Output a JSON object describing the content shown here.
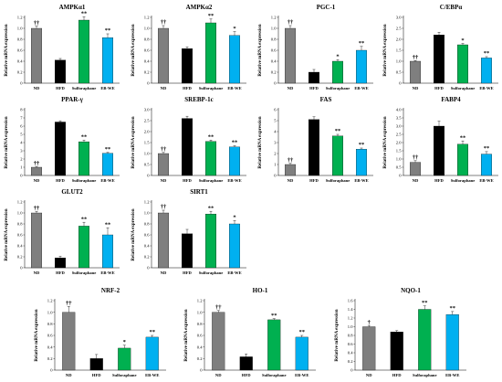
{
  "figure": {
    "colors": {
      "ND": "#7f7f7f",
      "HFD": "#000000",
      "Sulforaphane": "#00b050",
      "EB-WE": "#00b0f0"
    },
    "ylabel": "Relative mRNA expression"
  },
  "chart_data": [
    {
      "type": "bar",
      "title": "AMPKα1",
      "ylabel": "Relative mRNA expression",
      "categories": [
        "ND",
        "HFD",
        "Sulforaphane",
        "EB-WE"
      ],
      "values": [
        1.0,
        0.42,
        1.15,
        0.83
      ],
      "errors": [
        0.04,
        0.03,
        0.06,
        0.07
      ],
      "significance": [
        "††",
        "",
        "**",
        "**"
      ],
      "ylim": [
        0,
        1.2
      ],
      "yticks": [
        "0",
        "0.2",
        "0.4",
        "0.6",
        "0.8",
        "1.0",
        "1.2"
      ]
    },
    {
      "type": "bar",
      "title": "AMPKα2",
      "ylabel": "Relative mRNA expression",
      "categories": [
        "ND",
        "HFD",
        "Sulforaphane",
        "EB-WE"
      ],
      "values": [
        1.0,
        0.63,
        1.1,
        0.87
      ],
      "errors": [
        0.05,
        0.03,
        0.07,
        0.07
      ],
      "significance": [
        "††",
        "",
        "**",
        "*"
      ],
      "ylim": [
        0,
        1.2
      ],
      "yticks": [
        "0",
        "0.2",
        "0.4",
        "0.6",
        "0.8",
        "1.0",
        "1.2"
      ]
    },
    {
      "type": "bar",
      "title": "PGC-1",
      "ylabel": "Relative mRNA expression",
      "categories": [
        "ND",
        "HFD",
        "Sulforaphane",
        "EB-WE"
      ],
      "values": [
        1.0,
        0.2,
        0.4,
        0.6
      ],
      "errors": [
        0.05,
        0.05,
        0.03,
        0.07
      ],
      "significance": [
        "††",
        "",
        "*",
        "**"
      ],
      "ylim": [
        0,
        1.2
      ],
      "yticks": [
        "0",
        "0.2",
        "0.4",
        "0.6",
        "0.8",
        "1.0",
        "1.2"
      ]
    },
    {
      "type": "bar",
      "title": "C/EBPα",
      "ylabel": "Relative mRNA expression",
      "categories": [
        "ND",
        "HFD",
        "Sulforaphane",
        "EB-WE"
      ],
      "values": [
        1.0,
        2.2,
        1.75,
        1.15
      ],
      "errors": [
        0.03,
        0.12,
        0.06,
        0.06
      ],
      "significance": [
        "††",
        "",
        "*",
        "**"
      ],
      "ylim": [
        0,
        3.0
      ],
      "yticks": [
        "0",
        "0.5",
        "1.0",
        "1.5",
        "2.0",
        "2.5",
        "3.0"
      ]
    },
    {
      "type": "bar",
      "title": "PPAR-γ",
      "ylabel": "Relative mRNA expression",
      "categories": [
        "ND",
        "HFD",
        "Sulforaphane",
        "EB-WE"
      ],
      "values": [
        1.0,
        6.5,
        4.1,
        2.7
      ],
      "errors": [
        0.1,
        0.15,
        0.2,
        0.1
      ],
      "significance": [
        "††",
        "",
        "**",
        "**"
      ],
      "ylim": [
        0,
        8
      ],
      "yticks": [
        "0",
        "1",
        "2",
        "3",
        "4",
        "5",
        "6",
        "7",
        "8"
      ]
    },
    {
      "type": "bar",
      "title": "SREBP-1c",
      "ylabel": "Relative mRNA expression",
      "categories": [
        "ND",
        "HFD",
        "Sulforaphane",
        "EB-WE"
      ],
      "values": [
        1.0,
        2.6,
        1.55,
        1.3
      ],
      "errors": [
        0.05,
        0.1,
        0.06,
        0.06
      ],
      "significance": [
        "††",
        "",
        "**",
        "**"
      ],
      "ylim": [
        0,
        3.0
      ],
      "yticks": [
        "0",
        "0.5",
        "1.0",
        "1.5",
        "2.0",
        "2.5",
        "3.0"
      ]
    },
    {
      "type": "bar",
      "title": "FAS",
      "ylabel": "Relative mRNA expression",
      "categories": [
        "ND",
        "HFD",
        "Sulforaphane",
        "EB-WE"
      ],
      "values": [
        1.0,
        5.1,
        3.6,
        2.4
      ],
      "errors": [
        0.1,
        0.25,
        0.15,
        0.1
      ],
      "significance": [
        "††",
        "",
        "**",
        "**"
      ],
      "ylim": [
        0,
        6
      ],
      "yticks": [
        "0",
        "1",
        "2",
        "3",
        "4",
        "5",
        "6"
      ]
    },
    {
      "type": "bar",
      "title": "FABP4",
      "ylabel": "Relative mRNA expression",
      "categories": [
        "ND",
        "HFD",
        "Sulforaphane",
        "EB-WE"
      ],
      "values": [
        0.8,
        3.0,
        1.9,
        1.3
      ],
      "errors": [
        0.1,
        0.3,
        0.2,
        0.15
      ],
      "significance": [
        "††",
        "",
        "**",
        "**"
      ],
      "ylim": [
        0,
        4.0
      ],
      "yticks": [
        "0",
        "0.5",
        "1.0",
        "1.5",
        "2.0",
        "2.5",
        "3.0",
        "3.5",
        "4.0"
      ]
    },
    {
      "type": "bar",
      "title": "GLUT2",
      "ylabel": "Relative mRNA expression",
      "categories": [
        "ND",
        "HFD",
        "Sulforaphane",
        "EB-WE"
      ],
      "values": [
        1.0,
        0.18,
        0.76,
        0.6
      ],
      "errors": [
        0.03,
        0.03,
        0.07,
        0.13
      ],
      "significance": [
        "††",
        "",
        "**",
        "**"
      ],
      "ylim": [
        0,
        1.2
      ],
      "yticks": [
        "0",
        "0.2",
        "0.4",
        "0.6",
        "0.8",
        "1.0",
        "1.2"
      ]
    },
    {
      "type": "bar",
      "title": "SIRT1",
      "ylabel": "Relative mRNA expression",
      "categories": [
        "ND",
        "HFD",
        "Sulforaphane",
        "EB-WE"
      ],
      "values": [
        1.0,
        0.62,
        0.98,
        0.8
      ],
      "errors": [
        0.05,
        0.08,
        0.05,
        0.06
      ],
      "significance": [
        "††",
        "",
        "**",
        "*"
      ],
      "ylim": [
        0,
        1.2
      ],
      "yticks": [
        "0",
        "0.2",
        "0.4",
        "0.6",
        "0.8",
        "1.0",
        "1.2"
      ]
    },
    {
      "type": "bar",
      "title": "NRF-2",
      "ylabel": "Relative mRNA expression",
      "categories": [
        "ND",
        "HFD",
        "Sulforaphane",
        "EB-WE"
      ],
      "values": [
        1.0,
        0.2,
        0.38,
        0.57
      ],
      "errors": [
        0.1,
        0.07,
        0.05,
        0.03
      ],
      "significance": [
        "††",
        "",
        "*",
        "**"
      ],
      "ylim": [
        0,
        1.2
      ],
      "yticks": [
        "0",
        "0.2",
        "0.4",
        "0.6",
        "0.8",
        "1.0",
        "1.2"
      ]
    },
    {
      "type": "bar",
      "title": "HO-1",
      "ylabel": "Relative mRNA expression",
      "categories": [
        "ND",
        "HFD",
        "Sulforaphane",
        "EB-WE"
      ],
      "values": [
        1.0,
        0.23,
        0.87,
        0.57
      ],
      "errors": [
        0.03,
        0.05,
        0.02,
        0.03
      ],
      "significance": [
        "††",
        "",
        "**",
        "**"
      ],
      "ylim": [
        0,
        1.2
      ],
      "yticks": [
        "0",
        "0.2",
        "0.4",
        "0.6",
        "0.8",
        "1.0",
        "1.2"
      ]
    },
    {
      "type": "bar",
      "title": "NQO-1",
      "ylabel": "Relative mRNA expression",
      "categories": [
        "ND",
        "HFD",
        "Sulforaphane",
        "EB-WE"
      ],
      "values": [
        1.0,
        0.88,
        1.4,
        1.28
      ],
      "errors": [
        0.03,
        0.03,
        0.08,
        0.07
      ],
      "significance": [
        "†",
        "",
        "**",
        "**"
      ],
      "ylim": [
        0,
        1.6
      ],
      "yticks": [
        "0",
        "0.2",
        "0.4",
        "0.6",
        "0.8",
        "1.0",
        "1.2",
        "1.4",
        "1.6"
      ]
    }
  ]
}
